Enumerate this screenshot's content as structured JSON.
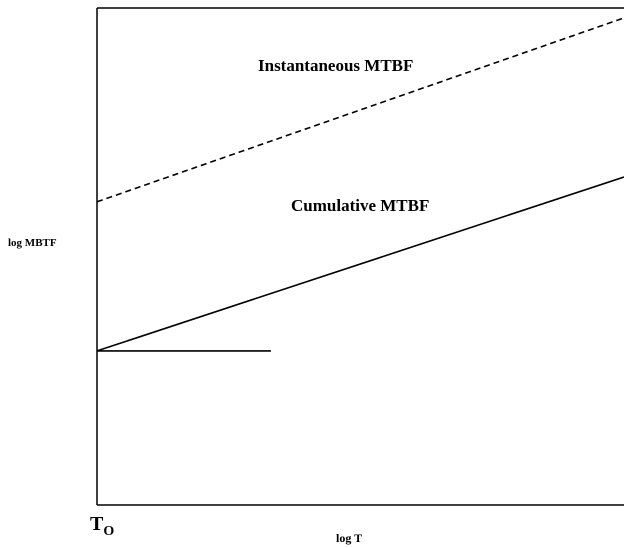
{
  "chart_data": {
    "type": "line",
    "title": "",
    "xlabel": "log T",
    "ylabel": "log MBTF",
    "x_scale": "log",
    "y_scale": "log",
    "x_tick_labels": [
      "T"
    ],
    "x_tick_label_subscripts": [
      "O"
    ],
    "grid": false,
    "legend": "none",
    "series": [
      {
        "name": "Instantaneous MTBF",
        "style": "dashed",
        "x": [
          0,
          1
        ],
        "y": [
          0.61,
          0.98
        ]
      },
      {
        "name": "Cumulative MTBF",
        "style": "solid",
        "x": [
          0,
          1
        ],
        "y": [
          0.31,
          0.66
        ]
      },
      {
        "name": "",
        "style": "solid",
        "x": [
          0,
          0.33
        ],
        "y": [
          0.31,
          0.31
        ]
      }
    ],
    "xlim": [
      0,
      1
    ],
    "ylim": [
      0,
      1
    ],
    "colors": {
      "line": "#000000",
      "background": "#ffffff"
    }
  }
}
